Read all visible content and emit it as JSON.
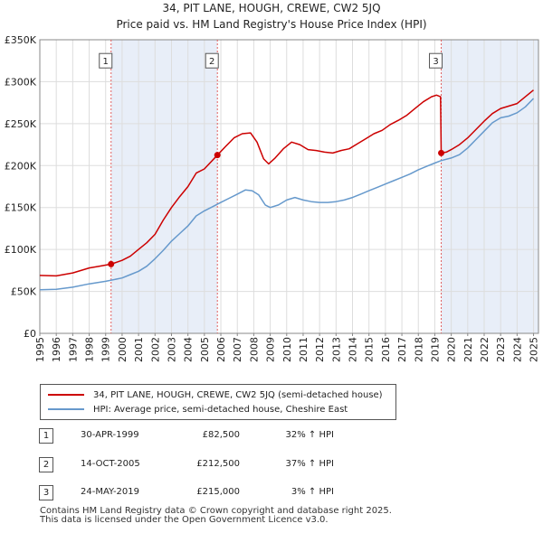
{
  "header": {
    "title": "34, PIT LANE, HOUGH, CREWE, CW2 5JQ",
    "subtitle": "Price paid vs. HM Land Registry's House Price Index (HPI)"
  },
  "chart_data": {
    "type": "line",
    "title": "34, PIT LANE, HOUGH, CREWE, CW2 5JQ",
    "subtitle": "Price paid vs. HM Land Registry's House Price Index (HPI)",
    "xlabel": "",
    "ylabel": "",
    "xlim": [
      1995,
      2025.3
    ],
    "ylim": [
      0,
      350000
    ],
    "y_ticks": [
      0,
      50000,
      100000,
      150000,
      200000,
      250000,
      300000,
      350000
    ],
    "y_tick_labels": [
      "£0",
      "£50K",
      "£100K",
      "£150K",
      "£200K",
      "£250K",
      "£300K",
      "£350K"
    ],
    "x_ticks": [
      1995,
      1996,
      1997,
      1998,
      1999,
      2000,
      2001,
      2002,
      2003,
      2004,
      2005,
      2006,
      2007,
      2008,
      2009,
      2010,
      2011,
      2012,
      2013,
      2014,
      2015,
      2016,
      2017,
      2018,
      2019,
      2020,
      2021,
      2022,
      2023,
      2024,
      2025
    ],
    "x_tick_labels": [
      "1995",
      "1996",
      "1997",
      "1998",
      "1999",
      "2000",
      "2001",
      "2002",
      "2003",
      "2004",
      "2005",
      "2006",
      "2007",
      "2008",
      "2009",
      "2010",
      "2011",
      "2012",
      "2013",
      "2014",
      "2015",
      "2016",
      "2017",
      "2018",
      "2019",
      "2020",
      "2021",
      "2022",
      "2023",
      "2024",
      "2025"
    ],
    "grid": true,
    "series": [
      {
        "name": "34, PIT LANE, HOUGH, CREWE, CW2 5JQ (semi-detached house)",
        "color": "#cc0000",
        "points": [
          [
            1995.0,
            69000
          ],
          [
            1996.0,
            68500
          ],
          [
            1997.0,
            72000
          ],
          [
            1998.0,
            78000
          ],
          [
            1998.6,
            80000
          ],
          [
            1999.33,
            82500
          ],
          [
            2000.0,
            87000
          ],
          [
            2000.5,
            92000
          ],
          [
            2001.0,
            100000
          ],
          [
            2001.5,
            108000
          ],
          [
            2002.0,
            118000
          ],
          [
            2002.5,
            135000
          ],
          [
            2003.0,
            150000
          ],
          [
            2003.5,
            163000
          ],
          [
            2004.0,
            175000
          ],
          [
            2004.5,
            191000
          ],
          [
            2005.0,
            196000
          ],
          [
            2005.79,
            212500
          ],
          [
            2006.3,
            223000
          ],
          [
            2006.8,
            233000
          ],
          [
            2007.3,
            238000
          ],
          [
            2007.8,
            239000
          ],
          [
            2008.2,
            228000
          ],
          [
            2008.6,
            208000
          ],
          [
            2008.9,
            202000
          ],
          [
            2009.3,
            209000
          ],
          [
            2009.8,
            220000
          ],
          [
            2010.3,
            228000
          ],
          [
            2010.8,
            225000
          ],
          [
            2011.3,
            219000
          ],
          [
            2011.8,
            218000
          ],
          [
            2012.3,
            216000
          ],
          [
            2012.8,
            215000
          ],
          [
            2013.3,
            218000
          ],
          [
            2013.8,
            220000
          ],
          [
            2014.3,
            226000
          ],
          [
            2014.8,
            232000
          ],
          [
            2015.3,
            238000
          ],
          [
            2015.8,
            242000
          ],
          [
            2016.3,
            249000
          ],
          [
            2016.8,
            254000
          ],
          [
            2017.3,
            260000
          ],
          [
            2017.8,
            268000
          ],
          [
            2018.3,
            276000
          ],
          [
            2018.8,
            282000
          ],
          [
            2019.1,
            284000
          ],
          [
            2019.35,
            282000
          ],
          [
            2019.39,
            215000
          ],
          [
            2019.7,
            216000
          ],
          [
            2020.0,
            219000
          ],
          [
            2020.5,
            225000
          ],
          [
            2021.0,
            233000
          ],
          [
            2021.5,
            243000
          ],
          [
            2022.0,
            253000
          ],
          [
            2022.5,
            262000
          ],
          [
            2023.0,
            268000
          ],
          [
            2023.5,
            271000
          ],
          [
            2024.0,
            274000
          ],
          [
            2024.5,
            282000
          ],
          [
            2025.0,
            290000
          ]
        ]
      },
      {
        "name": "HPI: Average price, semi-detached house, Cheshire East",
        "color": "#6699cc",
        "points": [
          [
            1995.0,
            52000
          ],
          [
            1996.0,
            52500
          ],
          [
            1997.0,
            55000
          ],
          [
            1998.0,
            59000
          ],
          [
            1999.0,
            62000
          ],
          [
            2000.0,
            66000
          ],
          [
            2000.5,
            70000
          ],
          [
            2001.0,
            74000
          ],
          [
            2001.5,
            80000
          ],
          [
            2002.0,
            89000
          ],
          [
            2002.5,
            99000
          ],
          [
            2003.0,
            110000
          ],
          [
            2003.5,
            119000
          ],
          [
            2004.0,
            128000
          ],
          [
            2004.5,
            140000
          ],
          [
            2005.0,
            146000
          ],
          [
            2005.5,
            151000
          ],
          [
            2006.0,
            156000
          ],
          [
            2006.5,
            161000
          ],
          [
            2007.0,
            166000
          ],
          [
            2007.5,
            171000
          ],
          [
            2007.9,
            170000
          ],
          [
            2008.3,
            165000
          ],
          [
            2008.7,
            153000
          ],
          [
            2009.0,
            150000
          ],
          [
            2009.5,
            153000
          ],
          [
            2010.0,
            159000
          ],
          [
            2010.5,
            162000
          ],
          [
            2011.0,
            159000
          ],
          [
            2011.5,
            157000
          ],
          [
            2012.0,
            156000
          ],
          [
            2012.5,
            156000
          ],
          [
            2013.0,
            157000
          ],
          [
            2013.5,
            159000
          ],
          [
            2014.0,
            162000
          ],
          [
            2014.5,
            166000
          ],
          [
            2015.0,
            170000
          ],
          [
            2015.5,
            174000
          ],
          [
            2016.0,
            178000
          ],
          [
            2016.5,
            182000
          ],
          [
            2017.0,
            186000
          ],
          [
            2017.5,
            190000
          ],
          [
            2018.0,
            195000
          ],
          [
            2018.5,
            199000
          ],
          [
            2019.0,
            203000
          ],
          [
            2019.4,
            206000
          ],
          [
            2020.0,
            209000
          ],
          [
            2020.5,
            213000
          ],
          [
            2021.0,
            221000
          ],
          [
            2021.5,
            231000
          ],
          [
            2022.0,
            241000
          ],
          [
            2022.5,
            251000
          ],
          [
            2023.0,
            257000
          ],
          [
            2023.5,
            259000
          ],
          [
            2024.0,
            263000
          ],
          [
            2024.5,
            270000
          ],
          [
            2025.0,
            280000
          ]
        ]
      }
    ],
    "sales": [
      {
        "label": "1",
        "date": "30-APR-1999",
        "x": 1999.33,
        "price": 82500,
        "price_text": "£82,500",
        "hpi_text": "32% ↑ HPI"
      },
      {
        "label": "2",
        "date": "14-OCT-2005",
        "x": 2005.79,
        "price": 212500,
        "price_text": "£212,500",
        "hpi_text": "37% ↑ HPI"
      },
      {
        "label": "3",
        "date": "24-MAY-2019",
        "x": 2019.39,
        "price": 215000,
        "price_text": "£215,000",
        "hpi_text": "3% ↑ HPI"
      }
    ],
    "marker_label_value": 325000,
    "shaded_spans": [
      [
        1999.33,
        2005.79
      ],
      [
        2019.39,
        2025.3
      ]
    ],
    "colors": {
      "shade": "#e8eef8",
      "grid": "#dddddd",
      "vline": "#e06060"
    }
  },
  "legend": {
    "property": "34, PIT LANE, HOUGH, CREWE, CW2 5JQ (semi-detached house)",
    "hpi": "HPI: Average price, semi-detached house, Cheshire East",
    "property_color": "#cc0000",
    "hpi_color": "#6699cc"
  },
  "footer": {
    "line1": "Contains HM Land Registry data © Crown copyright and database right 2025.",
    "line2": "This data is licensed under the Open Government Licence v3.0."
  }
}
